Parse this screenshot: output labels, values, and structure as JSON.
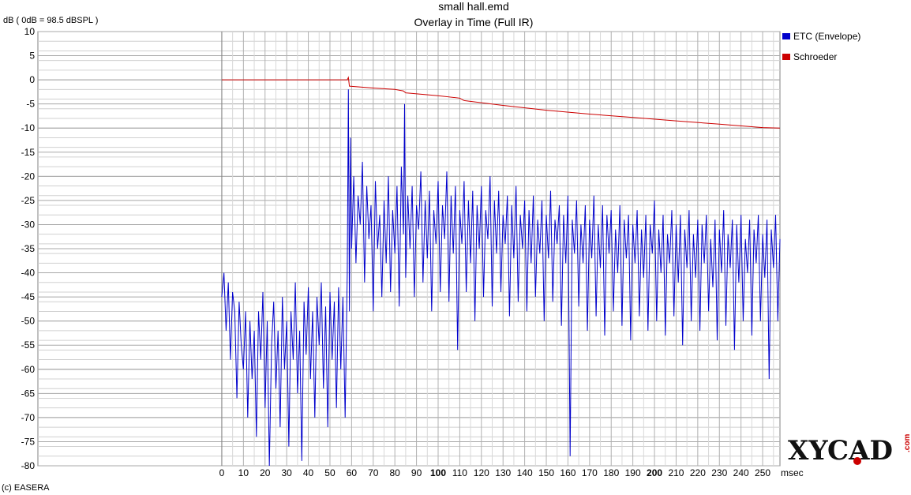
{
  "chart_data": {
    "type": "line",
    "title": "small hall.emd",
    "subtitle": "Overlay in Time (Full IR)",
    "ylabel": "dB ( 0dB = 98.5 dBSPL )",
    "xlabel": "msec",
    "xlim": [
      -85,
      258
    ],
    "ylim": [
      -80,
      10
    ],
    "x_ticks": [
      0,
      10,
      20,
      30,
      40,
      50,
      60,
      70,
      80,
      90,
      100,
      110,
      120,
      130,
      140,
      150,
      160,
      170,
      180,
      190,
      200,
      210,
      220,
      230,
      240,
      250
    ],
    "x_ticks_bold": [
      100,
      200
    ],
    "y_ticks": [
      10,
      5,
      0,
      -5,
      -10,
      -15,
      -20,
      -25,
      -30,
      -35,
      -40,
      -45,
      -50,
      -55,
      -60,
      -65,
      -70,
      -75,
      -80
    ],
    "grid": true,
    "legend_position": "right",
    "series": [
      {
        "name": "ETC (Envelope)",
        "color": "#0000cc",
        "points": [
          [
            0,
            -45
          ],
          [
            1,
            -40
          ],
          [
            2,
            -52
          ],
          [
            3,
            -42
          ],
          [
            4,
            -58
          ],
          [
            5,
            -44
          ],
          [
            6,
            -48
          ],
          [
            7,
            -66
          ],
          [
            8,
            -46
          ],
          [
            9,
            -55
          ],
          [
            10,
            -60
          ],
          [
            11,
            -48
          ],
          [
            12,
            -70
          ],
          [
            13,
            -50
          ],
          [
            14,
            -62
          ],
          [
            15,
            -52
          ],
          [
            16,
            -74
          ],
          [
            17,
            -48
          ],
          [
            18,
            -58
          ],
          [
            19,
            -44
          ],
          [
            20,
            -68
          ],
          [
            21,
            -50
          ],
          [
            22,
            -80
          ],
          [
            23,
            -55
          ],
          [
            24,
            -46
          ],
          [
            25,
            -64
          ],
          [
            26,
            -52
          ],
          [
            27,
            -72
          ],
          [
            28,
            -45
          ],
          [
            29,
            -60
          ],
          [
            30,
            -50
          ],
          [
            31,
            -76
          ],
          [
            32,
            -48
          ],
          [
            33,
            -58
          ],
          [
            34,
            -42
          ],
          [
            35,
            -65
          ],
          [
            36,
            -52
          ],
          [
            37,
            -79
          ],
          [
            38,
            -46
          ],
          [
            39,
            -57
          ],
          [
            40,
            -43
          ],
          [
            41,
            -62
          ],
          [
            42,
            -48
          ],
          [
            43,
            -70
          ],
          [
            44,
            -45
          ],
          [
            45,
            -55
          ],
          [
            46,
            -42
          ],
          [
            47,
            -64
          ],
          [
            48,
            -47
          ],
          [
            49,
            -72
          ],
          [
            50,
            -44
          ],
          [
            51,
            -58
          ],
          [
            52,
            -46
          ],
          [
            53,
            -68
          ],
          [
            54,
            -43
          ],
          [
            55,
            -60
          ],
          [
            56,
            -45
          ],
          [
            57,
            -70
          ],
          [
            58,
            -40
          ],
          [
            58.5,
            -2
          ],
          [
            59,
            -48
          ],
          [
            59.5,
            -12
          ],
          [
            60,
            -35
          ],
          [
            61,
            -20
          ],
          [
            62,
            -38
          ],
          [
            63,
            -24
          ],
          [
            64,
            -30
          ],
          [
            65,
            -17
          ],
          [
            66,
            -42
          ],
          [
            67,
            -22
          ],
          [
            68,
            -33
          ],
          [
            69,
            -26
          ],
          [
            70,
            -48
          ],
          [
            71,
            -21
          ],
          [
            72,
            -35
          ],
          [
            73,
            -28
          ],
          [
            74,
            -45
          ],
          [
            75,
            -25
          ],
          [
            76,
            -38
          ],
          [
            77,
            -20
          ],
          [
            78,
            -44
          ],
          [
            79,
            -27
          ],
          [
            80,
            -36
          ],
          [
            81,
            -22
          ],
          [
            82,
            -47
          ],
          [
            83,
            -18
          ],
          [
            84,
            -32
          ],
          [
            84.5,
            -5
          ],
          [
            85,
            -41
          ],
          [
            86,
            -24
          ],
          [
            87,
            -35
          ],
          [
            88,
            -22
          ],
          [
            89,
            -45
          ],
          [
            90,
            -26
          ],
          [
            91,
            -31
          ],
          [
            92,
            -19
          ],
          [
            93,
            -42
          ],
          [
            94,
            -25
          ],
          [
            95,
            -37
          ],
          [
            96,
            -23
          ],
          [
            97,
            -48
          ],
          [
            98,
            -27
          ],
          [
            99,
            -34
          ],
          [
            100,
            -21
          ],
          [
            101,
            -44
          ],
          [
            102,
            -26
          ],
          [
            103,
            -33
          ],
          [
            104,
            -19
          ],
          [
            105,
            -46
          ],
          [
            106,
            -24
          ],
          [
            107,
            -36
          ],
          [
            108,
            -22
          ],
          [
            109,
            -56
          ],
          [
            110,
            -27
          ],
          [
            111,
            -34
          ],
          [
            112,
            -21
          ],
          [
            113,
            -44
          ],
          [
            114,
            -25
          ],
          [
            115,
            -38
          ],
          [
            116,
            -23
          ],
          [
            117,
            -50
          ],
          [
            118,
            -26
          ],
          [
            119,
            -35
          ],
          [
            120,
            -22
          ],
          [
            121,
            -45
          ],
          [
            122,
            -27
          ],
          [
            123,
            -33
          ],
          [
            124,
            -20
          ],
          [
            125,
            -47
          ],
          [
            126,
            -25
          ],
          [
            127,
            -36
          ],
          [
            128,
            -23
          ],
          [
            129,
            -44
          ],
          [
            130,
            -28
          ],
          [
            131,
            -34
          ],
          [
            132,
            -24
          ],
          [
            133,
            -49
          ],
          [
            134,
            -26
          ],
          [
            135,
            -37
          ],
          [
            136,
            -22
          ],
          [
            137,
            -46
          ],
          [
            138,
            -28
          ],
          [
            139,
            -35
          ],
          [
            140,
            -25
          ],
          [
            141,
            -48
          ],
          [
            142,
            -27
          ],
          [
            143,
            -38
          ],
          [
            144,
            -24
          ],
          [
            145,
            -45
          ],
          [
            146,
            -29
          ],
          [
            147,
            -36
          ],
          [
            148,
            -25
          ],
          [
            149,
            -50
          ],
          [
            150,
            -28
          ],
          [
            151,
            -37
          ],
          [
            152,
            -23
          ],
          [
            153,
            -46
          ],
          [
            154,
            -29
          ],
          [
            155,
            -34
          ],
          [
            156,
            -26
          ],
          [
            157,
            -51
          ],
          [
            158,
            -28
          ],
          [
            159,
            -38
          ],
          [
            160,
            -24
          ],
          [
            161,
            -78
          ],
          [
            162,
            -29
          ],
          [
            163,
            -36
          ],
          [
            164,
            -25
          ],
          [
            165,
            -47
          ],
          [
            166,
            -30
          ],
          [
            167,
            -38
          ],
          [
            168,
            -26
          ],
          [
            169,
            -52
          ],
          [
            170,
            -29
          ],
          [
            171,
            -37
          ],
          [
            172,
            -24
          ],
          [
            173,
            -49
          ],
          [
            174,
            -30
          ],
          [
            175,
            -39
          ],
          [
            176,
            -26
          ],
          [
            177,
            -53
          ],
          [
            178,
            -28
          ],
          [
            179,
            -36
          ],
          [
            180,
            -27
          ],
          [
            181,
            -48
          ],
          [
            182,
            -31
          ],
          [
            183,
            -40
          ],
          [
            184,
            -26
          ],
          [
            185,
            -51
          ],
          [
            186,
            -29
          ],
          [
            187,
            -37
          ],
          [
            188,
            -28
          ],
          [
            189,
            -54
          ],
          [
            190,
            -30
          ],
          [
            191,
            -38
          ],
          [
            192,
            -27
          ],
          [
            193,
            -49
          ],
          [
            194,
            -31
          ],
          [
            195,
            -41
          ],
          [
            196,
            -28
          ],
          [
            197,
            -52
          ],
          [
            198,
            -30
          ],
          [
            199,
            -36
          ],
          [
            200,
            -25
          ],
          [
            201,
            -50
          ],
          [
            202,
            -31
          ],
          [
            203,
            -40
          ],
          [
            204,
            -28
          ],
          [
            205,
            -53
          ],
          [
            206,
            -32
          ],
          [
            207,
            -38
          ],
          [
            208,
            -27
          ],
          [
            209,
            -49
          ],
          [
            210,
            -30
          ],
          [
            211,
            -42
          ],
          [
            212,
            -28
          ],
          [
            213,
            -55
          ],
          [
            214,
            -31
          ],
          [
            215,
            -39
          ],
          [
            216,
            -27
          ],
          [
            217,
            -50
          ],
          [
            218,
            -32
          ],
          [
            219,
            -41
          ],
          [
            220,
            -29
          ],
          [
            221,
            -52
          ],
          [
            222,
            -30
          ],
          [
            223,
            -38
          ],
          [
            224,
            -28
          ],
          [
            225,
            -48
          ],
          [
            226,
            -33
          ],
          [
            227,
            -43
          ],
          [
            228,
            -29
          ],
          [
            229,
            -54
          ],
          [
            230,
            -31
          ],
          [
            231,
            -40
          ],
          [
            232,
            -27
          ],
          [
            233,
            -51
          ],
          [
            234,
            -32
          ],
          [
            235,
            -39
          ],
          [
            236,
            -29
          ],
          [
            237,
            -56
          ],
          [
            238,
            -30
          ],
          [
            239,
            -42
          ],
          [
            240,
            -28
          ],
          [
            241,
            -50
          ],
          [
            242,
            -33
          ],
          [
            243,
            -40
          ],
          [
            244,
            -29
          ],
          [
            245,
            -53
          ],
          [
            246,
            -31
          ],
          [
            247,
            -38
          ],
          [
            248,
            -28
          ],
          [
            249,
            -50
          ],
          [
            250,
            -32
          ],
          [
            251,
            -41
          ],
          [
            252,
            -29
          ],
          [
            253,
            -62
          ],
          [
            254,
            -31
          ],
          [
            255,
            -39
          ],
          [
            256,
            -28
          ],
          [
            257,
            -50
          ],
          [
            258,
            -33
          ]
        ]
      },
      {
        "name": "Schroeder",
        "color": "#cc0000",
        "points": [
          [
            0,
            0
          ],
          [
            58,
            0
          ],
          [
            58.5,
            0.5
          ],
          [
            59,
            -1.3
          ],
          [
            70,
            -1.7
          ],
          [
            80,
            -2
          ],
          [
            84,
            -2.3
          ],
          [
            85,
            -2.7
          ],
          [
            100,
            -3.3
          ],
          [
            110,
            -3.8
          ],
          [
            112,
            -4.3
          ],
          [
            130,
            -5.3
          ],
          [
            150,
            -6.3
          ],
          [
            170,
            -7.1
          ],
          [
            190,
            -7.8
          ],
          [
            210,
            -8.5
          ],
          [
            230,
            -9.2
          ],
          [
            250,
            -9.9
          ],
          [
            258,
            -10
          ]
        ]
      }
    ]
  },
  "footer": {
    "copyright": "(c) EASERA"
  },
  "logo": {
    "text": "XYCAD",
    "suffix": ".com"
  }
}
